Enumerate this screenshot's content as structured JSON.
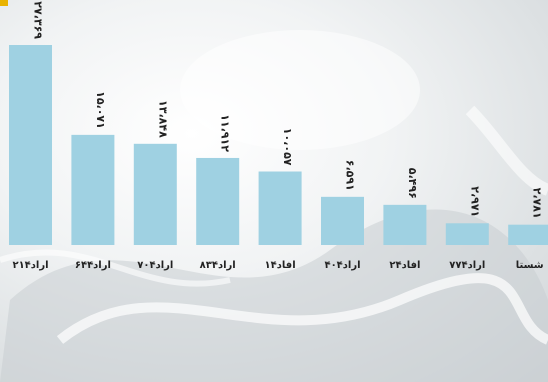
{
  "header": {
    "left_fragment": "",
    "right_fragment": ""
  },
  "chart_data": {
    "type": "bar",
    "title": "",
    "xlabel": "",
    "ylabel": "",
    "categories": [
      "اراد۲۱۴",
      "اراد۶۴۴",
      "اراد۷۰۴",
      "اراد۸۳۴",
      "افاد۱۴",
      "اراد۴۰۴",
      "افاد۲۴",
      "اراد۷۷۴",
      "شستا"
    ],
    "values": [
      27369,
      15071,
      13848,
      11912,
      10057,
      6591,
      5496,
      2971,
      2781
    ],
    "value_labels": [
      "۲۷،۳۶۹",
      "۱۵،۰۷۱",
      "۱۳،۸۴۸",
      "۱۱،۹۱۲",
      "۱۰،۰۵۷",
      "۶،۵۹۱",
      "۵،۴۹۶",
      "۲،۹۷۱",
      "۲،۷۸۱"
    ],
    "ylim": [
      0,
      30000
    ],
    "bar_color": "#9fd1e2",
    "grid": false,
    "legend": "none"
  }
}
